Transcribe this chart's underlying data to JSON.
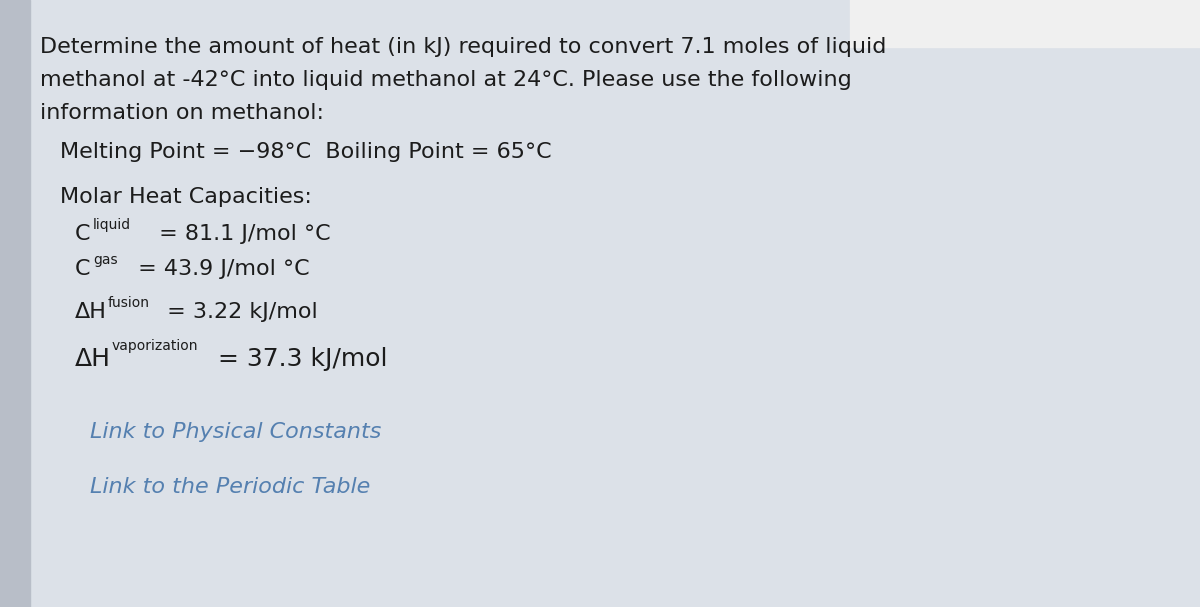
{
  "bg_color": "#cdd3db",
  "content_bg": "#dce1e8",
  "text_color": "#1c1c1c",
  "link_color": "#5580b0",
  "title_lines": [
    "Determine the amount of heat (in kJ) required to convert 7.1 moles of liquid",
    "methanol at -42°C into liquid methanol at 24°C. Please use the following",
    "information on methanol:"
  ],
  "melting_boiling": "Melting Point = −98°C  Boiling Point = 65°C",
  "molar_label": "Molar Heat Capacities:",
  "link1": "Link to Physical Constants",
  "link2": "Link to the Periodic Table",
  "title_fontsize": 16,
  "body_fontsize": 16,
  "sub_fontsize": 10,
  "link_fontsize": 16
}
